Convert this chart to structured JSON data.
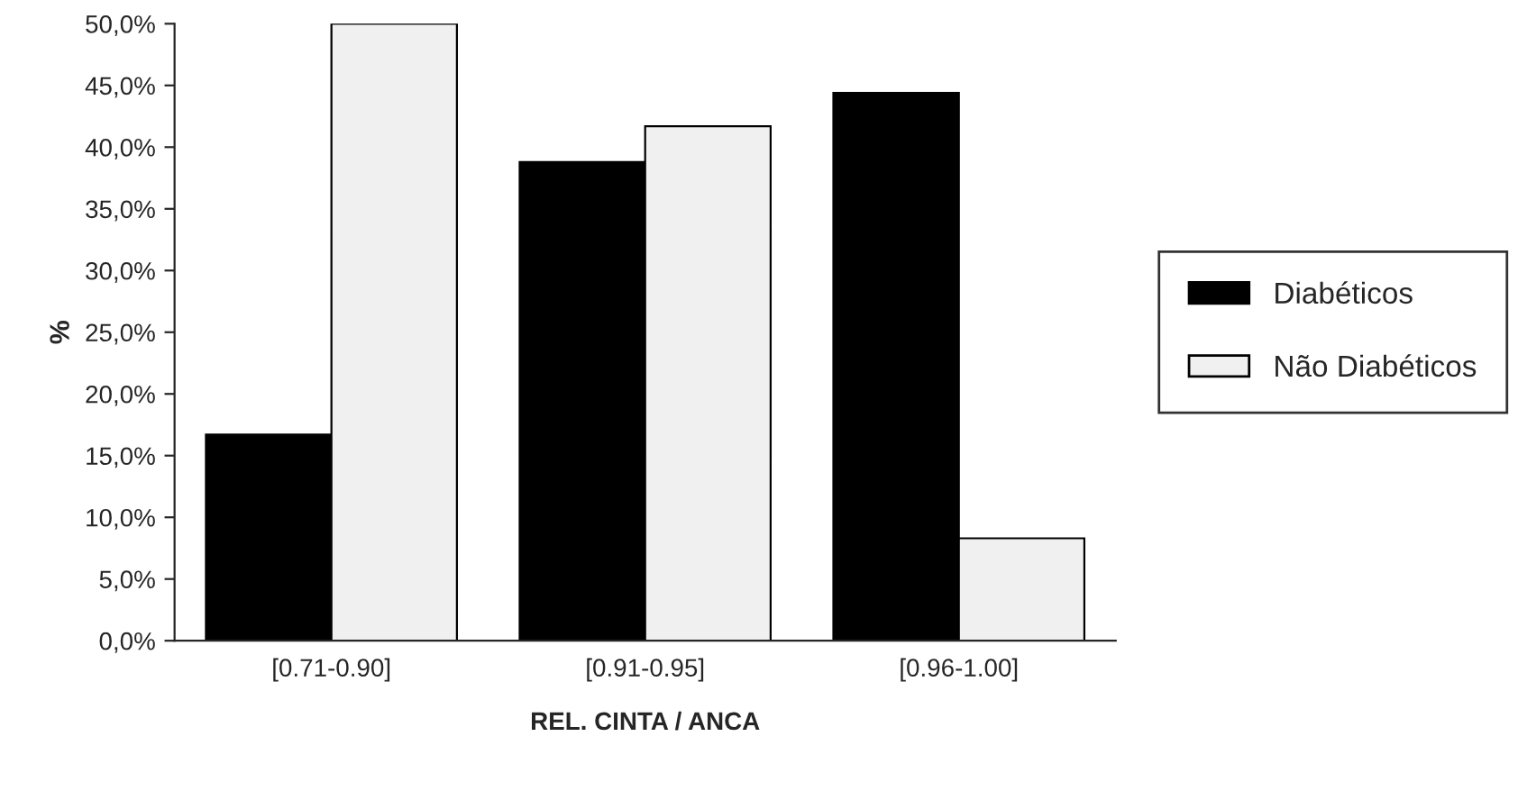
{
  "chart_data": {
    "type": "bar",
    "xlabel": "REL. CINTA / ANCA",
    "ylabel": "%",
    "categories": [
      "[0.71-0.90]",
      "[0.91-0.95]",
      "[0.96-1.00]"
    ],
    "series": [
      {
        "name": "Diabéticos",
        "color": "#000000",
        "values": [
          16.7,
          38.8,
          44.4
        ]
      },
      {
        "name": "Não Diabéticos",
        "color": "#f0f0f0",
        "values": [
          50.0,
          41.7,
          8.3
        ]
      }
    ],
    "ylim": [
      0,
      50
    ],
    "yticks": [
      {
        "value": 0,
        "label": "0,0%"
      },
      {
        "value": 5,
        "label": "5,0%"
      },
      {
        "value": 10,
        "label": "10,0%"
      },
      {
        "value": 15,
        "label": "15,0%"
      },
      {
        "value": 20,
        "label": "20,0%"
      },
      {
        "value": 25,
        "label": "25,0%"
      },
      {
        "value": 30,
        "label": "30,0%"
      },
      {
        "value": 35,
        "label": "35,0%"
      },
      {
        "value": 40,
        "label": "40,0%"
      },
      {
        "value": 45,
        "label": "45,0%"
      },
      {
        "value": 50,
        "label": "50,0%"
      }
    ],
    "grid": false,
    "legend": "right"
  }
}
